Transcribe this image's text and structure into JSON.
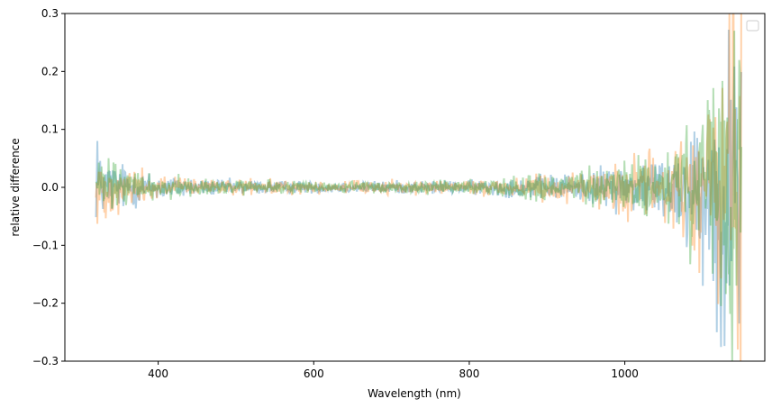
{
  "chart_data": {
    "type": "line",
    "title": "",
    "xlabel": "Wavelength (nm)",
    "ylabel": "relative difference",
    "xlim": [
      280,
      1180
    ],
    "ylim": [
      -0.3,
      0.3
    ],
    "x_ticks": [
      400,
      600,
      800,
      1000
    ],
    "x_tick_labels": [
      "400",
      "600",
      "800",
      "1000"
    ],
    "y_ticks": [
      -0.3,
      -0.2,
      -0.1,
      0.0,
      0.1,
      0.2,
      0.3
    ],
    "y_tick_labels": [
      "−0.3",
      "−0.2",
      "−0.1",
      "0.0",
      "0.1",
      "0.2",
      "0.3"
    ],
    "grid": false,
    "legend": {
      "placement": "top-right",
      "entries": []
    },
    "x_range_data": [
      320,
      1150
    ],
    "series": [
      {
        "color": "#1f77b4",
        "opacity": 0.35,
        "envelope": [
          [
            320,
            0.04
          ],
          [
            380,
            0.02
          ],
          [
            450,
            0.01
          ],
          [
            600,
            0.007
          ],
          [
            800,
            0.008
          ],
          [
            950,
            0.018
          ],
          [
            1050,
            0.04
          ],
          [
            1100,
            0.09
          ],
          [
            1150,
            0.22
          ]
        ],
        "spikes": [
          [
            322,
            0.08
          ],
          [
            1100,
            -0.17
          ],
          [
            1118,
            -0.25
          ],
          [
            1140,
            0.13
          ]
        ]
      },
      {
        "color": "#ff7f0e",
        "opacity": 0.35,
        "envelope": [
          [
            320,
            0.035
          ],
          [
            380,
            0.02
          ],
          [
            450,
            0.01
          ],
          [
            600,
            0.007
          ],
          [
            800,
            0.008
          ],
          [
            950,
            0.02
          ],
          [
            1050,
            0.045
          ],
          [
            1100,
            0.1
          ],
          [
            1150,
            0.3
          ]
        ],
        "spikes": [
          [
            322,
            -0.063
          ],
          [
            1140,
            0.3
          ],
          [
            1145,
            -0.28
          ]
        ]
      },
      {
        "color": "#2ca02c",
        "opacity": 0.35,
        "envelope": [
          [
            320,
            0.035
          ],
          [
            380,
            0.02
          ],
          [
            450,
            0.01
          ],
          [
            600,
            0.007
          ],
          [
            800,
            0.008
          ],
          [
            950,
            0.02
          ],
          [
            1050,
            0.04
          ],
          [
            1100,
            0.1
          ],
          [
            1150,
            0.25
          ]
        ],
        "spikes": [
          [
            1138,
            -0.3
          ],
          [
            1148,
            0.2
          ]
        ]
      }
    ]
  }
}
